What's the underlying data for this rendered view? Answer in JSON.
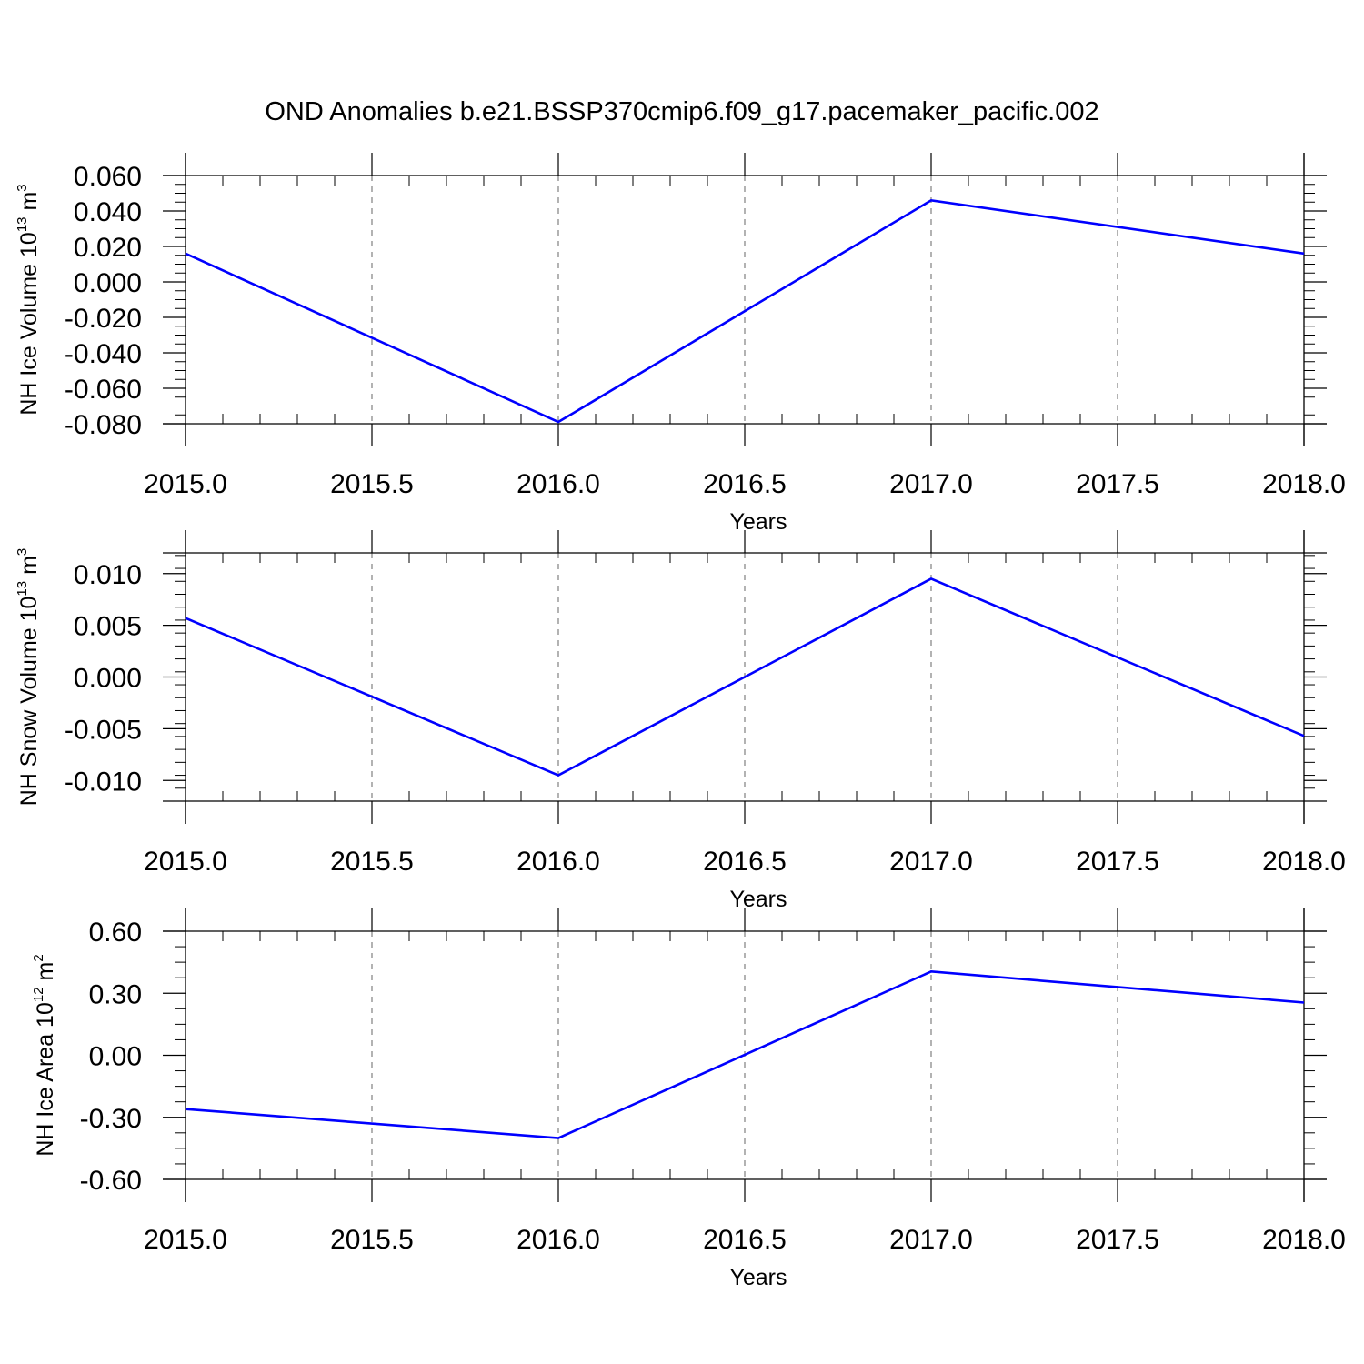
{
  "title": "OND Anomalies b.e21.BSSP370cmip6.f09_g17.pacemaker_pacific.002",
  "line_color": "#0000ff",
  "grid_color": "#808080",
  "chart_data": [
    {
      "type": "line",
      "ylabel": {
        "text": "NH Ice Volume 10",
        "exp": "13",
        "unit": " m",
        "unit_exp": "3"
      },
      "xlabel": "Years",
      "x_ticks": [
        "2015.0",
        "2015.5",
        "2016.0",
        "2016.5",
        "2017.0",
        "2017.5",
        "2018.0"
      ],
      "y_ticks": [
        "0.060",
        "0.040",
        "0.020",
        "0.000",
        "-0.020",
        "-0.040",
        "-0.060",
        "-0.080"
      ],
      "xlim": [
        2015.0,
        2018.0
      ],
      "ylim": [
        -0.08,
        0.06
      ],
      "grid": "vertical dashed",
      "x": [
        2015,
        2016,
        2017,
        2018
      ],
      "y": [
        0.016,
        -0.079,
        0.046,
        0.016
      ]
    },
    {
      "type": "line",
      "ylabel": {
        "text": "NH Snow Volume 10",
        "exp": "13",
        "unit": " m",
        "unit_exp": "3"
      },
      "xlabel": "Years",
      "x_ticks": [
        "2015.0",
        "2015.5",
        "2016.0",
        "2016.5",
        "2017.0",
        "2017.5",
        "2018.0"
      ],
      "y_ticks": [
        "0.010",
        "0.005",
        "0.000",
        "-0.005",
        "-0.010"
      ],
      "xlim": [
        2015.0,
        2018.0
      ],
      "ylim": [
        -0.012,
        0.012
      ],
      "grid": "vertical dashed",
      "x": [
        2015,
        2016,
        2017,
        2018
      ],
      "y": [
        0.0057,
        -0.0095,
        0.0095,
        -0.0057
      ]
    },
    {
      "type": "line",
      "ylabel": {
        "text": "NH Ice Area 10",
        "exp": "12",
        "unit": " m",
        "unit_exp": "2"
      },
      "xlabel": "Years",
      "x_ticks": [
        "2015.0",
        "2015.5",
        "2016.0",
        "2016.5",
        "2017.0",
        "2017.5",
        "2018.0"
      ],
      "y_ticks": [
        "0.60",
        "0.30",
        "0.00",
        "-0.30",
        "-0.60"
      ],
      "xlim": [
        2015.0,
        2018.0
      ],
      "ylim": [
        -0.6,
        0.6
      ],
      "grid": "vertical dashed",
      "x": [
        2015,
        2016,
        2017,
        2018
      ],
      "y": [
        -0.26,
        -0.4,
        0.405,
        0.255
      ]
    }
  ]
}
